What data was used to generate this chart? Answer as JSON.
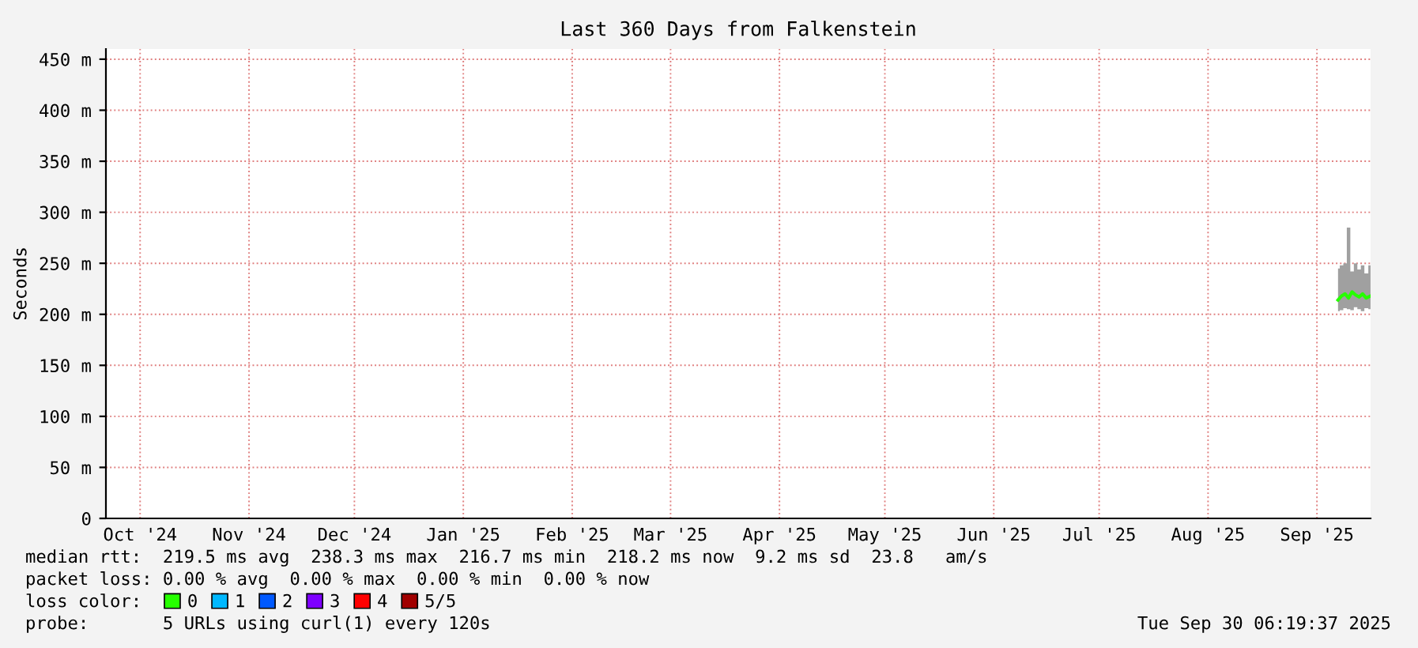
{
  "chart_data": {
    "type": "line",
    "title": "Last 360 Days from Falkenstein",
    "ylabel": "Seconds",
    "legend_title": "loss color:",
    "legend": "bottom left",
    "grid": true,
    "marker": "none",
    "line_style": "solid",
    "x": [
      "2025-09-21",
      "2025-09-22",
      "2025-09-23",
      "2025-09-24",
      "2025-09-25",
      "2025-09-26",
      "2025-09-27",
      "2025-09-28",
      "2025-09-29",
      "2025-09-30T06:00"
    ],
    "xlim": [
      "2024-10-05T06:19",
      "2025-09-30T06:19"
    ],
    "xticks": [
      {
        "value": "2024-10-15",
        "label": "Oct '24"
      },
      {
        "value": "2024-11-15",
        "label": "Nov '24"
      },
      {
        "value": "2024-12-15",
        "label": "Dec '24"
      },
      {
        "value": "2025-01-15",
        "label": "Jan '25"
      },
      {
        "value": "2025-02-15",
        "label": "Feb '25"
      },
      {
        "value": "2025-03-15",
        "label": "Mar '25"
      },
      {
        "value": "2025-04-15",
        "label": "Apr '25"
      },
      {
        "value": "2025-05-15",
        "label": "May '25"
      },
      {
        "value": "2025-06-15",
        "label": "Jun '25"
      },
      {
        "value": "2025-07-15",
        "label": "Jul '25"
      },
      {
        "value": "2025-08-15",
        "label": "Aug '25"
      },
      {
        "value": "2025-09-15",
        "label": "Sep '25"
      }
    ],
    "ylim": [
      0,
      460
    ],
    "yticks": [
      0,
      {
        "value": 50,
        "label": "50 m"
      },
      {
        "value": 100,
        "label": "100 m"
      },
      {
        "value": 150,
        "label": "150 m"
      },
      {
        "value": 200,
        "label": "200 m"
      },
      {
        "value": 250,
        "label": "250 m"
      },
      {
        "value": 300,
        "label": "300 m"
      },
      {
        "value": 350,
        "label": "350 m"
      },
      {
        "value": 400,
        "label": "400 m"
      },
      {
        "value": 450,
        "label": "450 m"
      }
    ],
    "series": [
      {
        "name": "0",
        "color": "#26ff00",
        "values": [
          214,
          218,
          220,
          216,
          222,
          219,
          217,
          220,
          216,
          218
        ],
        "lower": [
          203,
          204,
          206,
          205,
          204,
          207,
          205,
          203,
          206,
          205
        ],
        "upper": [
          245,
          248,
          250,
          285,
          242,
          250,
          244,
          248,
          240,
          248
        ]
      },
      {
        "name": "1",
        "color": "#00b8ff",
        "values": [
          null,
          null,
          null,
          null,
          null,
          null,
          null,
          null,
          null,
          null
        ]
      },
      {
        "name": "2",
        "color": "#0059ff",
        "values": [
          null,
          null,
          null,
          null,
          null,
          null,
          null,
          null,
          null,
          null
        ]
      },
      {
        "name": "3",
        "color": "#7e00ff",
        "values": [
          null,
          null,
          null,
          null,
          null,
          null,
          null,
          null,
          null,
          null
        ]
      },
      {
        "name": "4",
        "color": "#ff0000",
        "values": [
          null,
          null,
          null,
          null,
          null,
          null,
          null,
          null,
          null,
          null
        ]
      },
      {
        "name": "5/5",
        "color": "#a10000",
        "values": [
          null,
          null,
          null,
          null,
          null,
          null,
          null,
          null,
          null,
          null
        ]
      }
    ],
    "annotations": [
      "median rtt:  219.5 ms avg  238.3 ms max  216.7 ms min  218.2 ms now  9.2 ms sd  23.8   am/s",
      "packet loss: 0.00 % avg  0.00 % max  0.00 % min  0.00 % now",
      "probe:       5 URLs using curl(1) every 120s",
      "Tue Sep 30 06:19:37 2025"
    ]
  }
}
